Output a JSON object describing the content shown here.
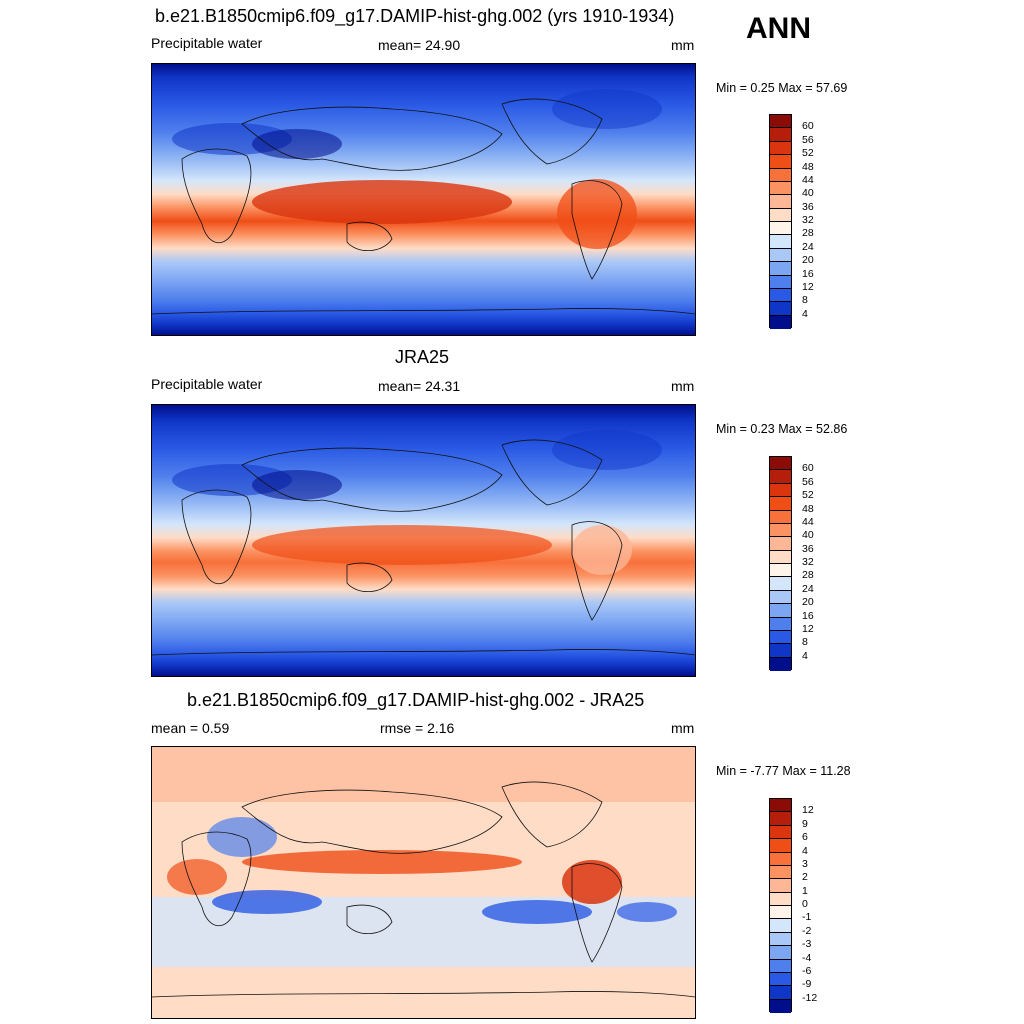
{
  "season": "ANN",
  "panels": [
    {
      "title": "b.e21.B1850cmip6.f09_g17.DAMIP-hist-ghg.002 (yrs 1910-1934)",
      "left_label": "Precipitable water",
      "center_label": "mean=  24.90",
      "units": "mm",
      "minmax": "Min =   0.25 Max =  57.69"
    },
    {
      "title": "JRA25",
      "left_label": "Precipitable water",
      "center_label": "mean=  24.31",
      "units": "mm",
      "minmax": "Min =   0.23 Max =  52.86"
    },
    {
      "title": "b.e21.B1850cmip6.f09_g17.DAMIP-hist-ghg.002 - JRA25",
      "left_label": "mean =   0.59",
      "center_label": "rmse =   2.16",
      "units": "mm",
      "minmax": "Min =  -7.77 Max =  11.28"
    }
  ],
  "colorbar_abs": {
    "labels": [
      "60",
      "56",
      "52",
      "48",
      "44",
      "40",
      "36",
      "32",
      "28",
      "24",
      "20",
      "16",
      "12",
      "8",
      "4"
    ],
    "colors": [
      "#8b0c07",
      "#b41e0a",
      "#da350f",
      "#f04e17",
      "#f8703a",
      "#fb9262",
      "#fdb796",
      "#fedcc6",
      "#fff4ea",
      "#d4e6fb",
      "#aac8f7",
      "#7da6f2",
      "#4f7fec",
      "#2a5ae5",
      "#1036c8",
      "#000e8c"
    ]
  },
  "colorbar_diff": {
    "labels": [
      "12",
      "9",
      "6",
      "4",
      "3",
      "2",
      "1",
      "0",
      "-1",
      "-2",
      "-3",
      "-4",
      "-6",
      "-9",
      "-12"
    ],
    "colors": [
      "#8b0c07",
      "#b41e0a",
      "#da350f",
      "#f04e17",
      "#f8703a",
      "#fb9262",
      "#fdb796",
      "#fedcc6",
      "#fff4ea",
      "#d4e6fb",
      "#aac8f7",
      "#7da6f2",
      "#4f7fec",
      "#2a5ae5",
      "#1036c8",
      "#000e8c"
    ]
  },
  "chart_data": [
    {
      "type": "heatmap",
      "title": "b.e21.B1850cmip6.f09_g17.DAMIP-hist-ghg.002 (yrs 1910-1934)",
      "variable": "Precipitable water",
      "units": "mm",
      "season": "ANN",
      "mean": 24.9,
      "min": 0.25,
      "max": 57.69,
      "contour_levels": [
        4,
        8,
        12,
        16,
        20,
        24,
        28,
        32,
        36,
        40,
        44,
        48,
        52,
        56,
        60
      ]
    },
    {
      "type": "heatmap",
      "title": "JRA25",
      "variable": "Precipitable water",
      "units": "mm",
      "mean": 24.31,
      "min": 0.23,
      "max": 52.86,
      "contour_levels": [
        4,
        8,
        12,
        16,
        20,
        24,
        28,
        32,
        36,
        40,
        44,
        48,
        52,
        56,
        60
      ]
    },
    {
      "type": "heatmap",
      "title": "b.e21.B1850cmip6.f09_g17.DAMIP-hist-ghg.002 - JRA25",
      "units": "mm",
      "mean": 0.59,
      "rmse": 2.16,
      "min": -7.77,
      "max": 11.28,
      "contour_levels": [
        -12,
        -9,
        -6,
        -4,
        -3,
        -2,
        -1,
        0,
        1,
        2,
        3,
        4,
        6,
        9,
        12
      ]
    }
  ]
}
